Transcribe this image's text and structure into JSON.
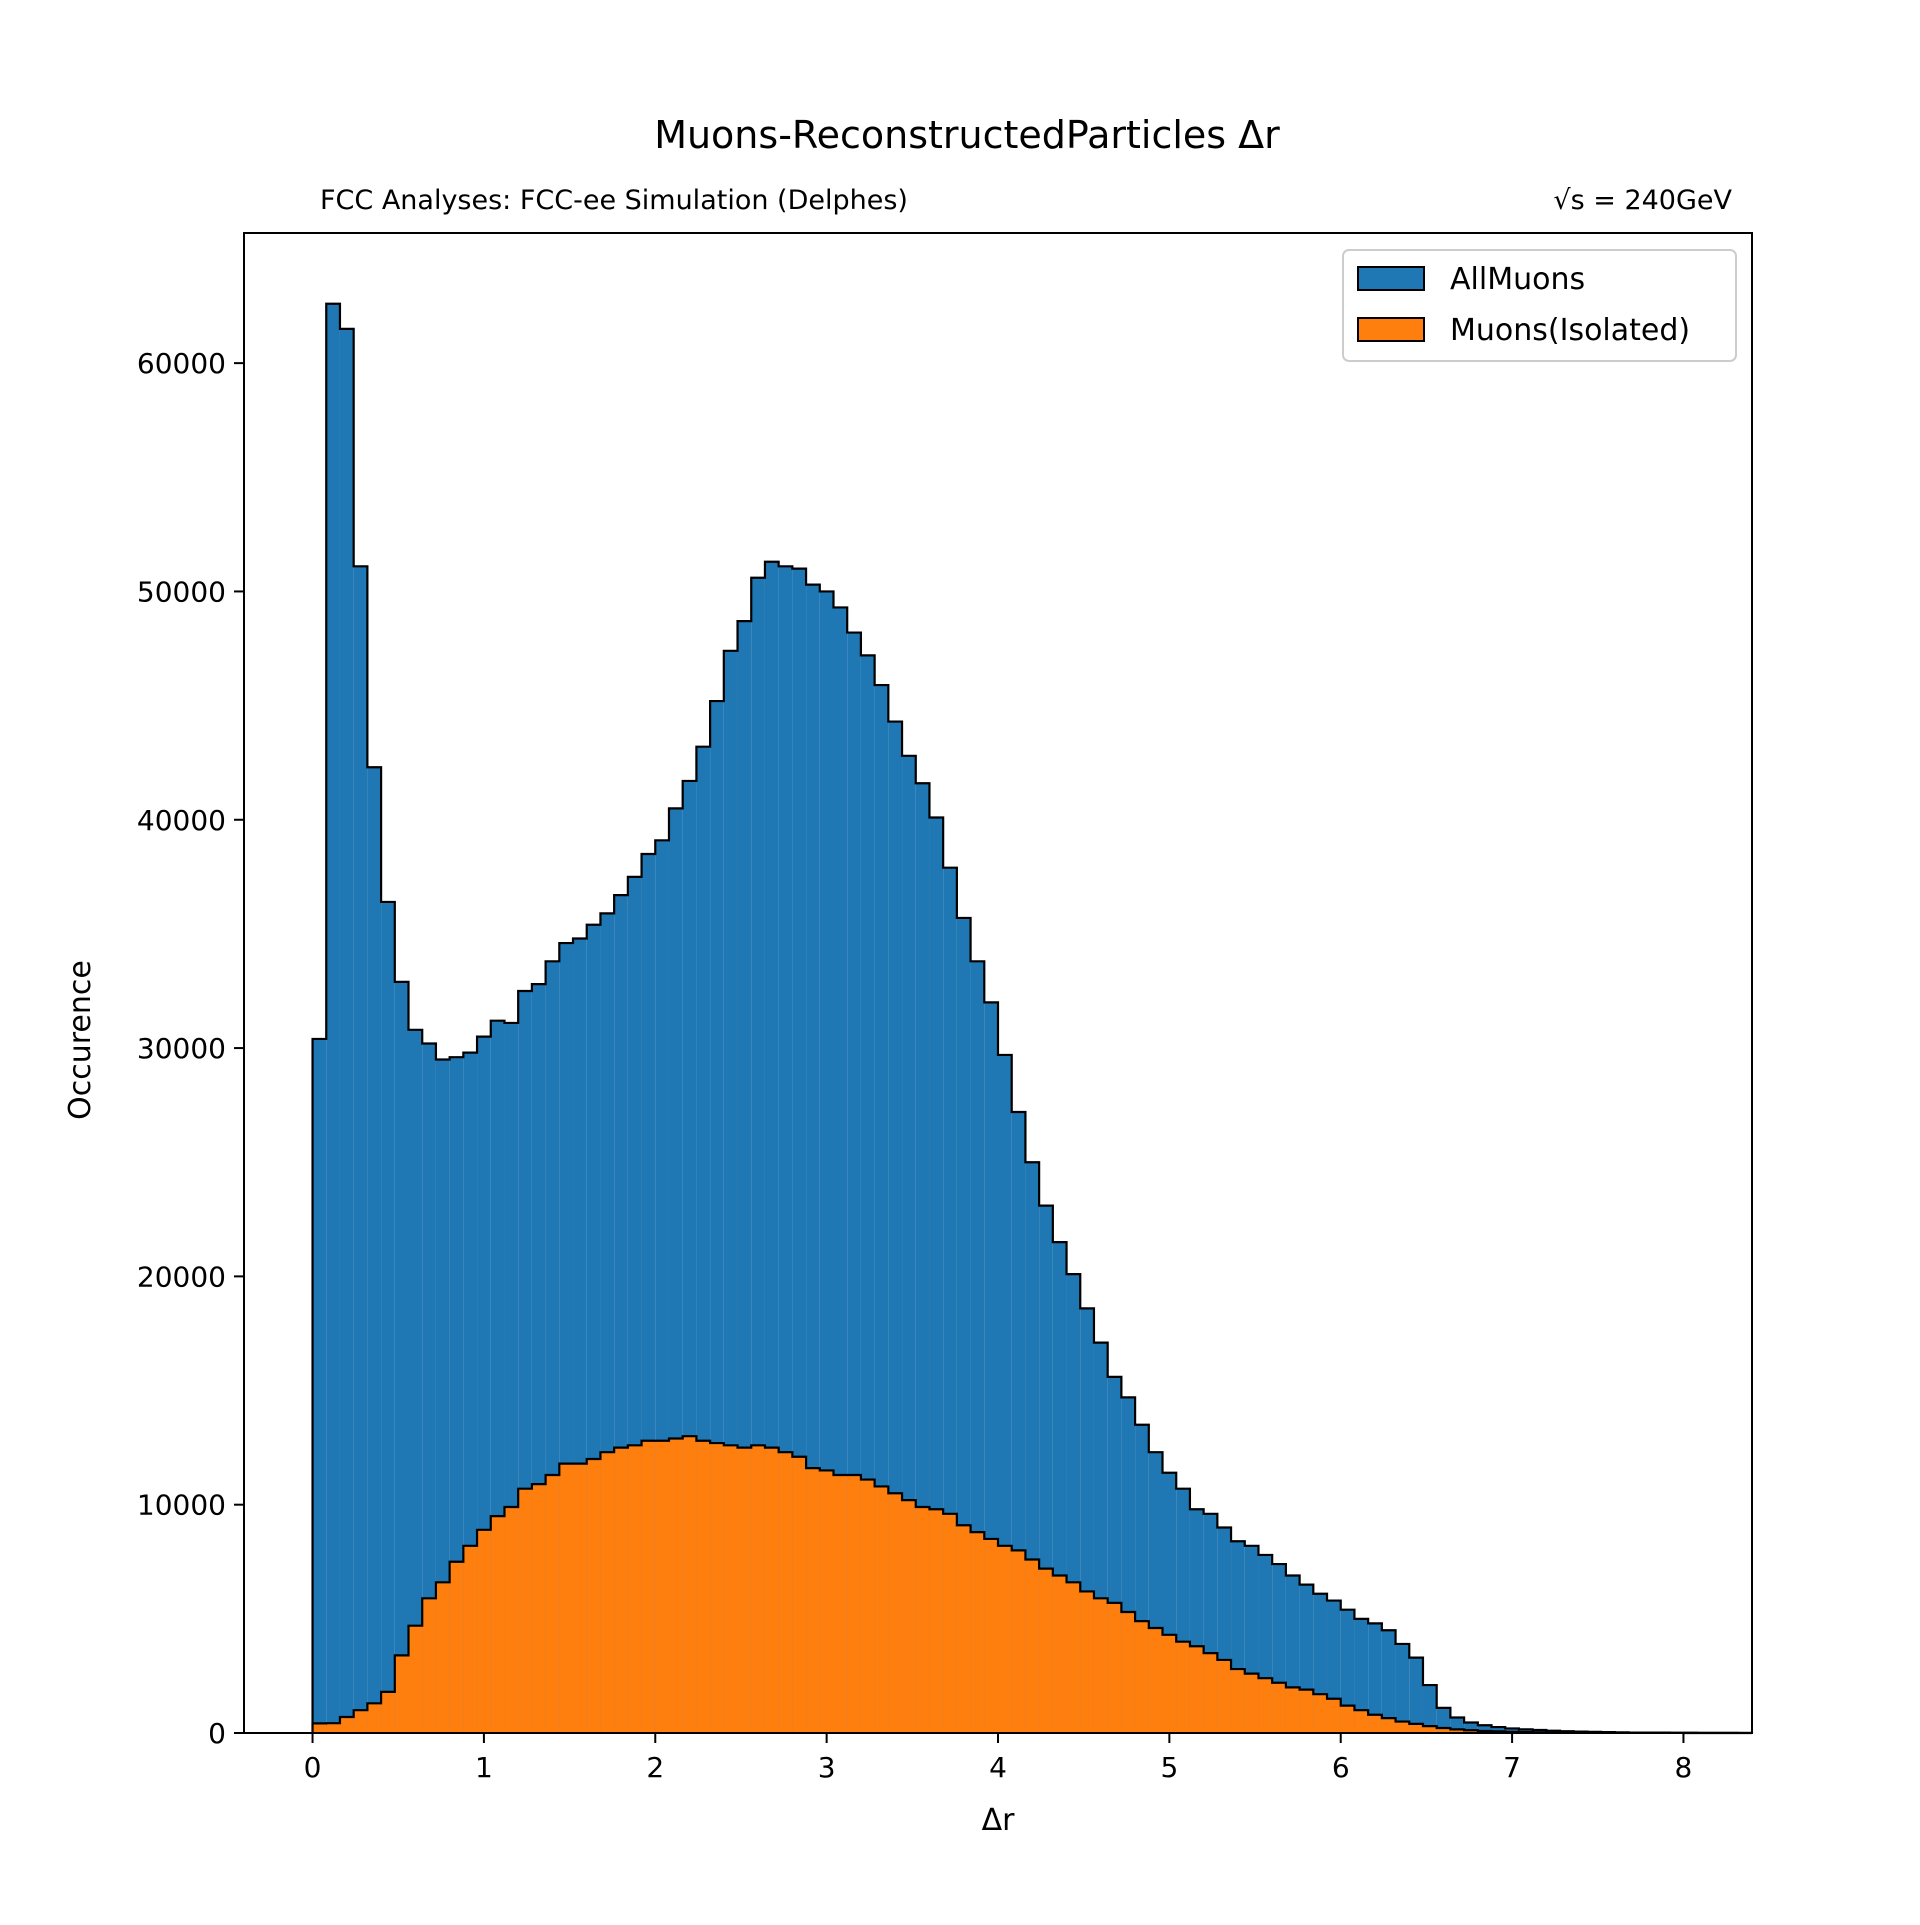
{
  "chart_data": {
    "type": "histogram",
    "title": "Muons-ReconstructedParticles Δr",
    "subtitle_left": "FCC Analyses: FCC-ee Simulation (Delphes)",
    "subtitle_right": "√s = 240GeV",
    "xlabel": "Δr",
    "ylabel": "Occurence",
    "xlim": [
      -0.4,
      8.4
    ],
    "ylim": [
      0,
      65700
    ],
    "x_ticks": [
      0,
      1,
      2,
      3,
      4,
      5,
      6,
      7,
      8
    ],
    "y_ticks": [
      0,
      10000,
      20000,
      30000,
      40000,
      50000,
      60000
    ],
    "grid": false,
    "legend_position": "top-right",
    "bin_start": 0,
    "bin_width": 0.08,
    "series": [
      {
        "name": "AllMuons",
        "color": "#1f77b4",
        "values": [
          30400,
          62600,
          61500,
          51100,
          42300,
          36400,
          32900,
          30800,
          30200,
          29500,
          29600,
          29800,
          30500,
          31200,
          31100,
          32500,
          32800,
          33800,
          34600,
          34800,
          35400,
          35900,
          36700,
          37500,
          38500,
          39100,
          40500,
          41700,
          43200,
          45200,
          47400,
          48700,
          50600,
          51300,
          51100,
          51000,
          50300,
          50000,
          49300,
          48200,
          47200,
          45900,
          44300,
          42800,
          41600,
          40100,
          37900,
          35700,
          33800,
          32000,
          29700,
          27200,
          25000,
          23100,
          21500,
          20100,
          18600,
          17100,
          15600,
          14700,
          13500,
          12300,
          11400,
          10700,
          9800,
          9600,
          9000,
          8400,
          8200,
          7800,
          7400,
          6900,
          6500,
          6100,
          5800,
          5400,
          5000,
          4800,
          4500,
          3900,
          3300,
          2100,
          1100,
          680,
          460,
          340,
          260,
          200,
          160,
          130,
          100,
          80,
          60,
          50,
          40,
          30,
          20,
          20,
          15,
          10,
          10,
          8,
          5,
          5,
          3
        ]
      },
      {
        "name": "Muons(Isolated)",
        "color": "#ff7f0e",
        "values": [
          420,
          430,
          700,
          1000,
          1300,
          1800,
          3400,
          4700,
          5900,
          6600,
          7500,
          8200,
          8900,
          9500,
          9900,
          10700,
          10900,
          11300,
          11800,
          11800,
          12000,
          12300,
          12500,
          12600,
          12800,
          12800,
          12900,
          13000,
          12800,
          12700,
          12600,
          12500,
          12600,
          12500,
          12300,
          12100,
          11600,
          11500,
          11300,
          11300,
          11100,
          10800,
          10500,
          10200,
          9900,
          9800,
          9600,
          9100,
          8800,
          8500,
          8200,
          8000,
          7600,
          7200,
          6900,
          6600,
          6200,
          5900,
          5700,
          5300,
          4900,
          4600,
          4300,
          4000,
          3800,
          3500,
          3200,
          2800,
          2600,
          2400,
          2200,
          2000,
          1900,
          1700,
          1500,
          1200,
          1000,
          800,
          650,
          500,
          400,
          300,
          220,
          160,
          120,
          90,
          70,
          50,
          40,
          30,
          25,
          20,
          15,
          10,
          8,
          5,
          5,
          3,
          2,
          2,
          1,
          1,
          1,
          1,
          0
        ]
      }
    ]
  }
}
